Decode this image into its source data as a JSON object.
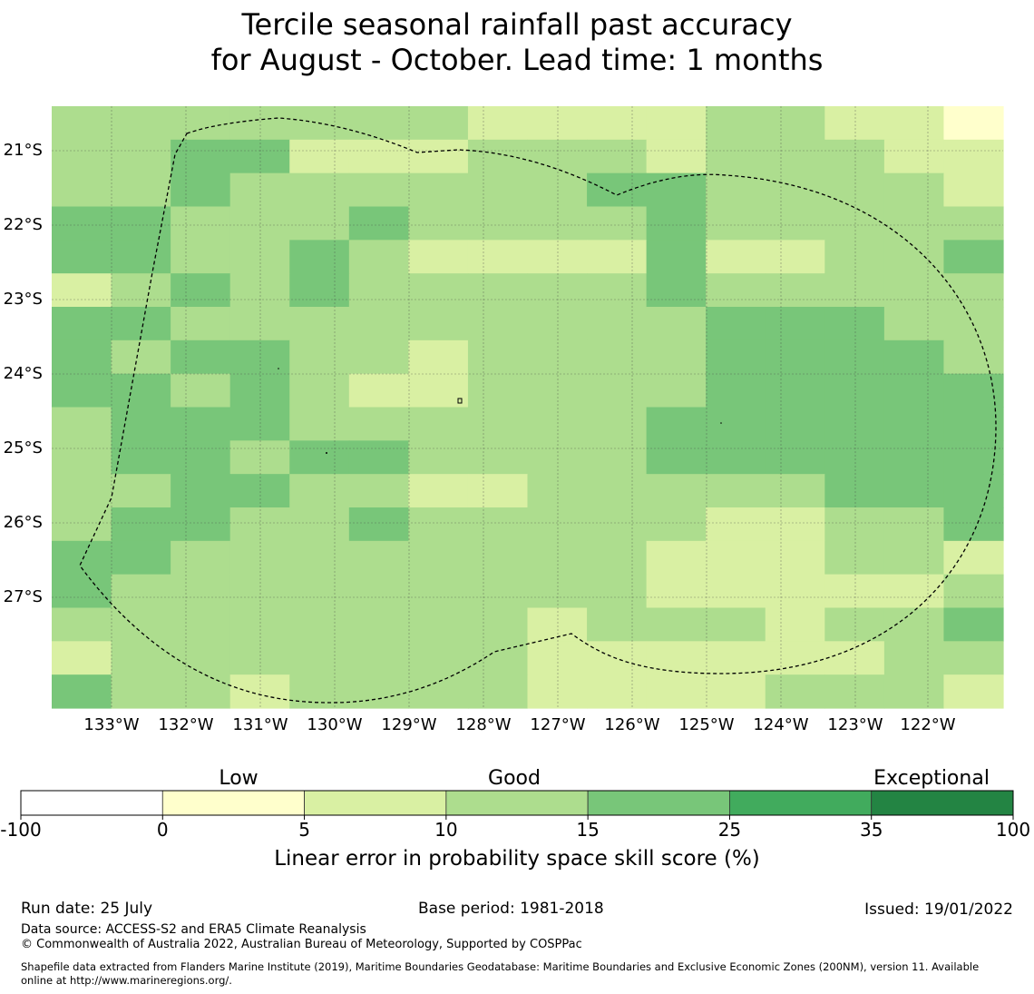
{
  "title": {
    "line1": "Tercile seasonal rainfall past accuracy",
    "line2": "for August - October. Lead time: 1 months"
  },
  "map": {
    "lon_labels": [
      "133°W",
      "132°W",
      "131°W",
      "130°W",
      "129°W",
      "128°W",
      "127°W",
      "126°W",
      "125°W",
      "124°W",
      "123°W",
      "122°W"
    ],
    "lat_labels": [
      "21°S",
      "22°S",
      "23°S",
      "24°S",
      "25°S",
      "26°S",
      "27°S"
    ],
    "rows": [
      "3333333222233221",
      "3344222333233322",
      "3343333334433332",
      "4433343333433333",
      "4433432222422334",
      "2343433333433333",
      "4433333333344433",
      "4344332333344443",
      "4434322333344444",
      "3444333333444444",
      "3443443333444444",
      "3344332233333444",
      "3443343333322334",
      "4433333333222332",
      "4333333333222223",
      "3333333323332334",
      "2333333322222233",
      "4332333322223332"
    ],
    "colors": {
      "1": "#ffffcc",
      "2": "#d9f0a3",
      "3": "#addd8e",
      "4": "#78c679",
      "5": "#41ab5d",
      "6": "#238443"
    }
  },
  "colorbar": {
    "categories": [
      "Low",
      "Good",
      "Exceptional"
    ],
    "ticks": [
      "-100",
      "0",
      "5",
      "10",
      "15",
      "25",
      "35",
      "100"
    ],
    "colors": [
      "#ffffff",
      "#ffffcc",
      "#d9f0a3",
      "#addd8e",
      "#78c679",
      "#41ab5d",
      "#238443"
    ],
    "label": "Linear error in probability space skill score (%)"
  },
  "footer": {
    "run_date": "Run date: 25 July",
    "base_period": "Base period: 1981-2018",
    "issued": "Issued: 19/01/2022",
    "data_source": "Data source: ACCESS-S2 and ERA5 Climate Reanalysis",
    "copyright": "© Commonwealth of Australia 2022, Australian Bureau of Meteorology, Supported by COSPPac",
    "shapefile_line1": "Shapefile data extracted from Flanders Marine Institute (2019), Maritime Boundaries Geodatabase: Maritime Boundaries and Exclusive Economic Zones (200NM), version 11. Available",
    "shapefile_line2": "online at http://www.marineregions.org/."
  }
}
